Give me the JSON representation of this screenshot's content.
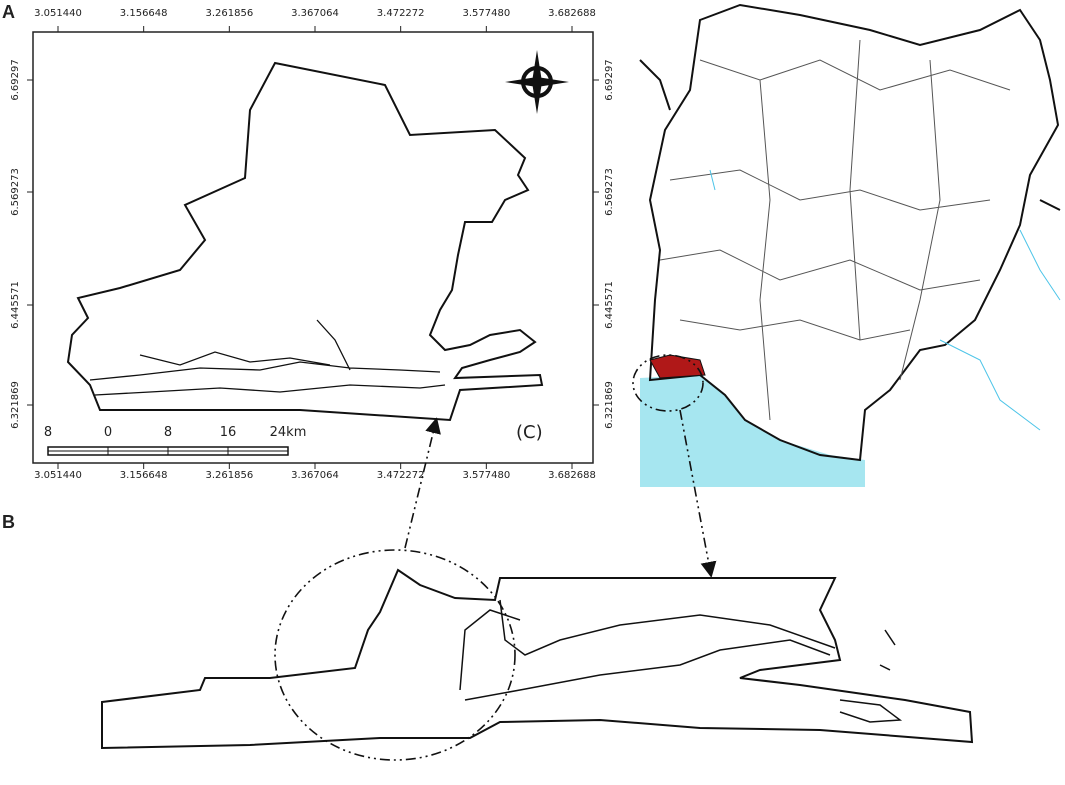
{
  "panels": {
    "a": "A",
    "b": "B"
  },
  "map_c": {
    "x_ticks": [
      "3.051440",
      "3.156648",
      "3.261856",
      "3.367064",
      "3.472272",
      "3.577480",
      "3.682688"
    ],
    "y_ticks": [
      "6.69297",
      "6.569273",
      "6.445571",
      "6.321869"
    ],
    "scale_labels": [
      "8",
      "0",
      "8",
      "16",
      "24km"
    ],
    "label": "(C)"
  }
}
